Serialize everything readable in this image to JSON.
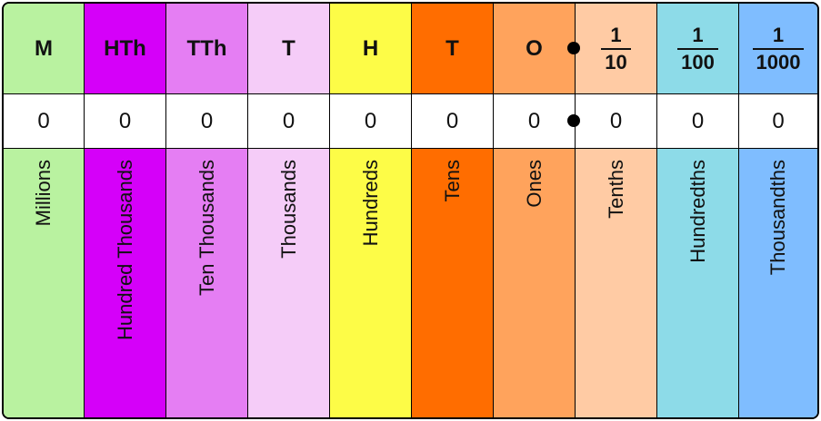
{
  "columns": [
    {
      "header": "M",
      "value": "0",
      "name": "Millions",
      "color": "#b9f2a0"
    },
    {
      "header": "HTh",
      "value": "0",
      "name": "Hundred Thousands",
      "color": "#d500f9"
    },
    {
      "header": "TTh",
      "value": "0",
      "name": "Ten Thousands",
      "color": "#e57ef3"
    },
    {
      "header": "T",
      "value": "0",
      "name": "Thousands",
      "color": "#f5ccf8"
    },
    {
      "header": "H",
      "value": "0",
      "name": "Hundreds",
      "color": "#fdfc47"
    },
    {
      "header": "T",
      "value": "0",
      "name": "Tens",
      "color": "#ff6d00"
    },
    {
      "header": "O",
      "value": "0",
      "name": "Ones",
      "color": "#ffa35c"
    },
    {
      "header_num": "1",
      "header_den": "10",
      "value": "0",
      "name": "Tenths",
      "color": "#ffcba4"
    },
    {
      "header_num": "1",
      "header_den": "100",
      "value": "0",
      "name": "Hundredths",
      "color": "#8ddbe8"
    },
    {
      "header_num": "1",
      "header_den": "1000",
      "value": "0",
      "name": "Thousandths",
      "color": "#7fbdff"
    }
  ]
}
